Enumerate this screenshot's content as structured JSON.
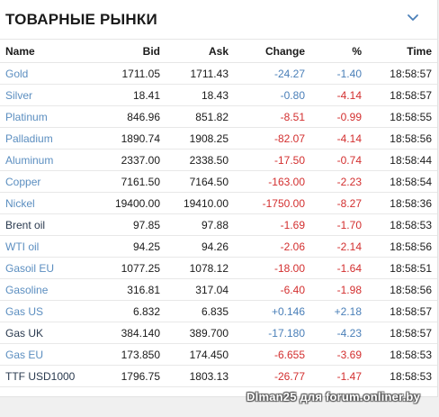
{
  "widget": {
    "title": "ТОВАРНЫЕ РЫНКИ",
    "collapse_icon": "chevron-down-icon"
  },
  "table": {
    "headers": [
      "Name",
      "Bid",
      "Ask",
      "Change",
      "%",
      "Time"
    ],
    "rows": [
      {
        "name": "Gold",
        "bid": "1711.05",
        "ask": "1711.43",
        "change": "-24.27",
        "pct": "-1.40",
        "time": "18:58:57",
        "name_style": "link",
        "change_style": "negb",
        "pct_style": "negb"
      },
      {
        "name": "Silver",
        "bid": "18.41",
        "ask": "18.43",
        "change": "-0.80",
        "pct": "-4.14",
        "time": "18:58:57",
        "name_style": "link",
        "change_style": "negb",
        "pct_style": "neg"
      },
      {
        "name": "Platinum",
        "bid": "846.96",
        "ask": "851.82",
        "change": "-8.51",
        "pct": "-0.99",
        "time": "18:58:55",
        "name_style": "link",
        "change_style": "neg",
        "pct_style": "neg"
      },
      {
        "name": "Palladium",
        "bid": "1890.74",
        "ask": "1908.25",
        "change": "-82.07",
        "pct": "-4.14",
        "time": "18:58:56",
        "name_style": "link",
        "change_style": "neg",
        "pct_style": "neg"
      },
      {
        "name": "Aluminum",
        "bid": "2337.00",
        "ask": "2338.50",
        "change": "-17.50",
        "pct": "-0.74",
        "time": "18:58:44",
        "name_style": "link",
        "change_style": "neg",
        "pct_style": "neg"
      },
      {
        "name": "Copper",
        "bid": "7161.50",
        "ask": "7164.50",
        "change": "-163.00",
        "pct": "-2.23",
        "time": "18:58:54",
        "name_style": "link",
        "change_style": "neg",
        "pct_style": "neg"
      },
      {
        "name": "Nickel",
        "bid": "19400.00",
        "ask": "19410.00",
        "change": "-1750.00",
        "pct": "-8.27",
        "time": "18:58:36",
        "name_style": "link",
        "change_style": "neg",
        "pct_style": "neg"
      },
      {
        "name": "Brent oil",
        "bid": "97.85",
        "ask": "97.88",
        "change": "-1.69",
        "pct": "-1.70",
        "time": "18:58:53",
        "name_style": "dark",
        "change_style": "neg",
        "pct_style": "neg"
      },
      {
        "name": "WTI oil",
        "bid": "94.25",
        "ask": "94.26",
        "change": "-2.06",
        "pct": "-2.14",
        "time": "18:58:56",
        "name_style": "link",
        "change_style": "neg",
        "pct_style": "neg"
      },
      {
        "name": "Gasoil EU",
        "bid": "1077.25",
        "ask": "1078.12",
        "change": "-18.00",
        "pct": "-1.64",
        "time": "18:58:51",
        "name_style": "link",
        "change_style": "neg",
        "pct_style": "neg"
      },
      {
        "name": "Gasoline",
        "bid": "316.81",
        "ask": "317.04",
        "change": "-6.40",
        "pct": "-1.98",
        "time": "18:58:56",
        "name_style": "link",
        "change_style": "neg",
        "pct_style": "neg"
      },
      {
        "name": "Gas US",
        "bid": "6.832",
        "ask": "6.835",
        "change": "+0.146",
        "pct": "+2.18",
        "time": "18:58:57",
        "name_style": "link",
        "change_style": "pos",
        "pct_style": "pos"
      },
      {
        "name": "Gas UK",
        "bid": "384.140",
        "ask": "389.700",
        "change": "-17.180",
        "pct": "-4.23",
        "time": "18:58:57",
        "name_style": "dark",
        "change_style": "negb",
        "pct_style": "negb"
      },
      {
        "name": "Gas EU",
        "bid": "173.850",
        "ask": "174.450",
        "change": "-6.655",
        "pct": "-3.69",
        "time": "18:58:53",
        "name_style": "link",
        "change_style": "neg",
        "pct_style": "neg"
      },
      {
        "name": "TTF USD1000",
        "bid": "1796.75",
        "ask": "1803.13",
        "change": "-26.77",
        "pct": "-1.47",
        "time": "18:58:53",
        "name_style": "dark",
        "change_style": "neg",
        "pct_style": "neg"
      }
    ]
  },
  "watermark": "Dlman25 для forum.onliner.by",
  "colors": {
    "link": "#5b8ec0",
    "dark_link": "#2a3a4f",
    "negative": "#d32f2f",
    "accent_blue": "#4a7fb8"
  }
}
